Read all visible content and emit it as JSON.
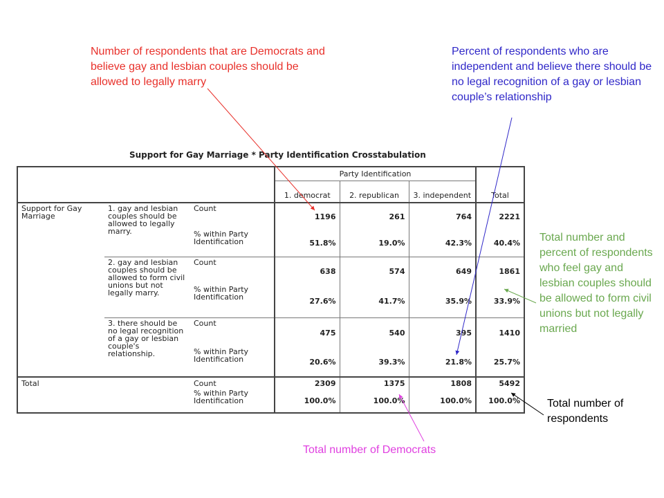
{
  "annotations": {
    "democrats_married": "Number of respondents that are Democrats and believe gay and lesbian couples should be allowed to legally marry",
    "independent_no_recognition": "Percent of respondents who are independent and believe there should be no legal recognition of a gay or lesbian couple’s relationship",
    "civil_unions_total": "Total number and percent of respondents who feel gay and lesbian couples should be allowed to form civil unions but not legally married",
    "total_respondents": "Total number of respondents",
    "total_democrats": "Total number of Democrats"
  },
  "table": {
    "title": "Support for Gay Marriage * Party Identification Crosstabulation",
    "col_group_header": "Party Identification",
    "columns": [
      "1. democrat",
      "2. republican",
      "3. independent",
      "Total"
    ],
    "row_variable": "Support for Gay Marriage",
    "count_label": "Count",
    "pct_label": "% within Party Identification",
    "total_label": "Total",
    "rows": [
      {
        "category": "1. gay and lesbian couples should be allowed to legally marry.",
        "counts": [
          "1196",
          "261",
          "764",
          "2221"
        ],
        "pcts": [
          "51.8%",
          "19.0%",
          "42.3%",
          "40.4%"
        ]
      },
      {
        "category": "2. gay and lesbian couples should be allowed to form civil unions but not legally marry.",
        "counts": [
          "638",
          "574",
          "649",
          "1861"
        ],
        "pcts": [
          "27.6%",
          "41.7%",
          "35.9%",
          "33.9%"
        ]
      },
      {
        "category": "3. there should be no legal recognition of a gay or lesbian couple's relationship.",
        "counts": [
          "475",
          "540",
          "395",
          "1410"
        ],
        "pcts": [
          "20.6%",
          "39.3%",
          "21.8%",
          "25.7%"
        ]
      }
    ],
    "total_row": {
      "counts": [
        "2309",
        "1375",
        "1808",
        "5492"
      ],
      "pcts": [
        "100.0%",
        "100.0%",
        "100.0%",
        "100.0%"
      ]
    }
  },
  "colors": {
    "red": "#e8302a",
    "blue": "#2f27c8",
    "green": "#6aa84f",
    "black": "#000000",
    "magenta": "#e040e0"
  }
}
